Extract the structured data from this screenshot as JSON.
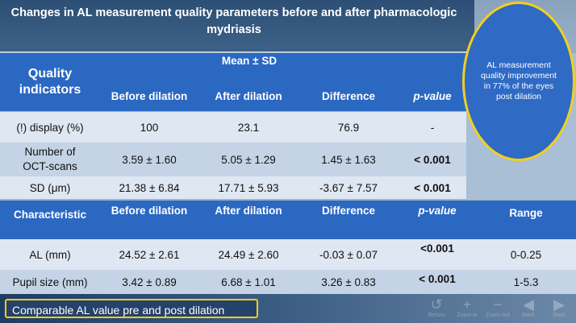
{
  "title": "Changes in AL measurement quality parameters before and after pharmacologic mydriasis",
  "callout_oval": "AL measurement quality improvement in 77% of the eyes post dilation",
  "table1": {
    "row_header": "Quality indicators",
    "group_header": "Mean ± SD",
    "columns": [
      "Before dilation",
      "After dilation",
      "Difference",
      "p-value"
    ],
    "rows": [
      {
        "label": "(!) display (%)",
        "before": "100",
        "after": "23.1",
        "difference": "76.9",
        "p": "-"
      },
      {
        "label": "Number of OCT-scans",
        "before": "3.59 ± 1.60",
        "after": "5.05 ± 1.29",
        "difference": "1.45 ± 1.63",
        "p": "< 0.001"
      },
      {
        "label": "SD (μm)",
        "before": "21.38 ± 6.84",
        "after": "17.71 ± 5.93",
        "difference": "-3.67 ± 7.57",
        "p": "< 0.001"
      }
    ]
  },
  "table2": {
    "columns": [
      "Characteristic",
      "Before dilation",
      "After dilation",
      "Difference",
      "p-value",
      "Range"
    ],
    "rows": [
      {
        "label": "AL (mm)",
        "before": "24.52 ± 2.61",
        "after": "24.49 ± 2.60",
        "difference": "-0.03 ± 0.07",
        "p": "<0.001",
        "range": "0-0.25"
      },
      {
        "label": "Pupil size (mm)",
        "before": "3.42 ± 0.89",
        "after": "6.68 ± 1.01",
        "difference": "3.26 ± 0.83",
        "p": "< 0.001",
        "range": "1-5.3"
      }
    ]
  },
  "bottom_callout": "Comparable AL value pre and post dilation",
  "navbar": [
    {
      "icon": "return-icon",
      "label": "Return"
    },
    {
      "icon": "zoom-in-icon",
      "label": "Zoom in"
    },
    {
      "icon": "zoom-out-icon",
      "label": "Zoom out"
    },
    {
      "icon": "back-icon",
      "label": "Back"
    },
    {
      "icon": "next-icon",
      "label": "Next"
    }
  ],
  "colors": {
    "header_blue": "#2b68c2",
    "oval_blue": "#2f6ac4",
    "highlight_yellow": "#f2cf1f",
    "band_dark": "#2d4f75"
  }
}
